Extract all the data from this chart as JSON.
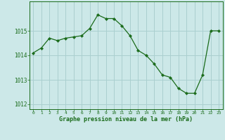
{
  "x": [
    0,
    1,
    2,
    3,
    4,
    5,
    6,
    7,
    8,
    9,
    10,
    11,
    12,
    13,
    14,
    15,
    16,
    17,
    18,
    19,
    20,
    21,
    22,
    23
  ],
  "y": [
    1014.1,
    1014.3,
    1014.7,
    1014.6,
    1014.7,
    1014.75,
    1014.8,
    1015.1,
    1015.65,
    1015.5,
    1015.5,
    1015.2,
    1014.8,
    1014.2,
    1014.0,
    1013.65,
    1013.2,
    1013.1,
    1012.65,
    1012.45,
    1012.45,
    1013.2,
    1015.0,
    1015.0
  ],
  "line_color": "#1a6b1a",
  "marker": "D",
  "marker_size": 2.2,
  "bg_color": "#cce8e8",
  "grid_color": "#aacfcf",
  "xlabel": "Graphe pression niveau de la mer (hPa)",
  "xlabel_color": "#1a6b1a",
  "tick_color": "#1a6b1a",
  "xlim": [
    -0.5,
    23.5
  ],
  "ylim": [
    1011.8,
    1016.2
  ],
  "yticks": [
    1012,
    1013,
    1014,
    1015
  ],
  "xticks": [
    0,
    1,
    2,
    3,
    4,
    5,
    6,
    7,
    8,
    9,
    10,
    11,
    12,
    13,
    14,
    15,
    16,
    17,
    18,
    19,
    20,
    21,
    22,
    23
  ]
}
